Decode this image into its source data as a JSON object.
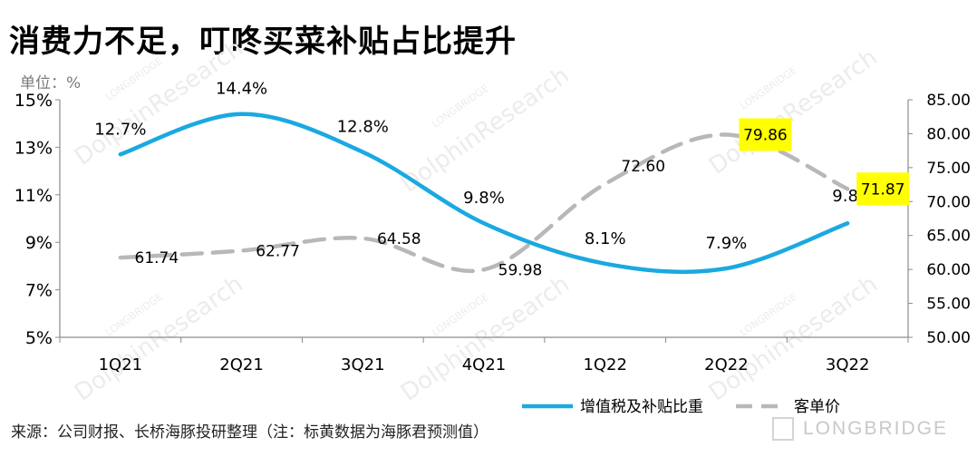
{
  "title": "消费力不足，叮咚买菜补贴占比提升",
  "source": "来源：公司财报、长桥海豚投研整理（注：标黄数据为海豚君预测值）",
  "brand": "LONGBRIDGE",
  "watermarks": [
    "LONGBRIDGE",
    "DolphinResearch"
  ],
  "colors": {
    "subsidy": "#1aa9e0",
    "aov": "#b8b8b8",
    "highlight": "#ffff00",
    "axis": "#8c8c8c",
    "watermark": "#ececec"
  },
  "chart_data": {
    "type": "line",
    "categories": [
      "1Q21",
      "2Q21",
      "3Q21",
      "4Q21",
      "1Q22",
      "2Q22",
      "3Q22"
    ],
    "series": [
      {
        "name": "增值税及补贴比重",
        "axis": "left",
        "values": [
          12.7,
          14.4,
          12.8,
          9.8,
          8.1,
          7.9,
          9.8
        ],
        "labels": [
          "12.7%",
          "14.4%",
          "12.8%",
          "9.8%",
          "8.1%",
          "7.9%",
          "9.8%"
        ],
        "style": "solid"
      },
      {
        "name": "客单价",
        "axis": "right",
        "values": [
          61.74,
          62.77,
          64.58,
          59.98,
          72.6,
          79.86,
          71.87
        ],
        "labels": [
          "61.74",
          "62.77",
          "64.58",
          "59.98",
          "72.60",
          "79.86",
          "71.87"
        ],
        "highlighted": [
          false,
          false,
          false,
          false,
          false,
          true,
          true
        ],
        "style": "dashed"
      }
    ],
    "left_axis": {
      "unit": "单位：%",
      "range": [
        5,
        15
      ],
      "ticks": [
        5,
        7,
        9,
        11,
        13,
        15
      ],
      "tick_labels": [
        "5%",
        "7%",
        "9%",
        "11%",
        "13%",
        "15%"
      ]
    },
    "right_axis": {
      "range": [
        50,
        85
      ],
      "ticks": [
        50,
        55,
        60,
        65,
        70,
        75,
        80,
        85
      ],
      "tick_labels": [
        "50.00",
        "55.00",
        "60.00",
        "65.00",
        "70.00",
        "75.00",
        "80.00",
        "85.00"
      ]
    },
    "grid": false,
    "legend_position": "bottom-right"
  }
}
